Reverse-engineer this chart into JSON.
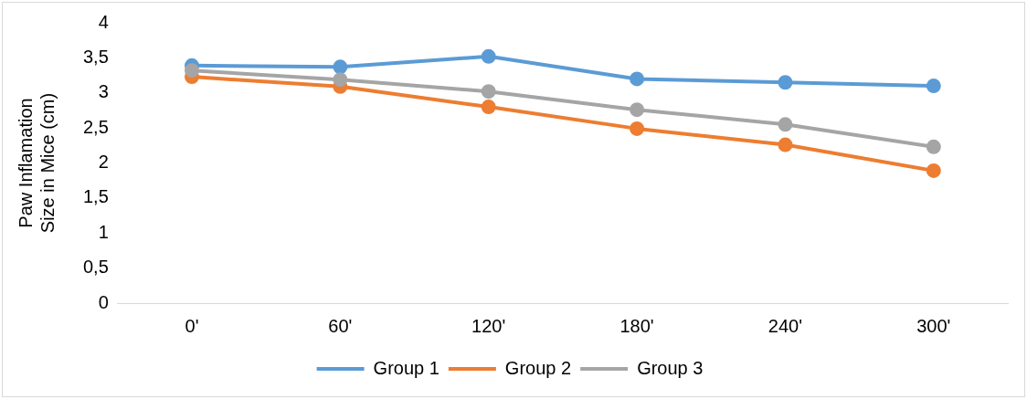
{
  "chart_data": {
    "type": "line",
    "ylabel": "Paw Inflamation Size in Mice (cm)",
    "categories": [
      "0'",
      "60'",
      "120'",
      "180'",
      "240'",
      "300'"
    ],
    "series": [
      {
        "name": "Group 1",
        "color": "#5b9bd5",
        "values": [
          3.39,
          3.37,
          3.52,
          3.2,
          3.15,
          3.1
        ]
      },
      {
        "name": "Group 2",
        "color": "#ed7d31",
        "values": [
          3.23,
          3.09,
          2.8,
          2.49,
          2.26,
          1.89
        ]
      },
      {
        "name": "Group 3",
        "color": "#a5a5a5",
        "values": [
          3.32,
          3.19,
          3.02,
          2.76,
          2.55,
          2.23
        ]
      }
    ],
    "ylim": [
      0,
      4
    ],
    "yticks": [
      0,
      {
        "value": 0.5,
        "label": "0,5"
      },
      1,
      {
        "value": 1.5,
        "label": "1,5"
      },
      2,
      {
        "value": 2.5,
        "label": "2,5"
      },
      3,
      {
        "value": 3.5,
        "label": "3,5"
      },
      4
    ],
    "grid": false,
    "legend": "bottom",
    "marker": "circle",
    "line_style": "solid"
  }
}
